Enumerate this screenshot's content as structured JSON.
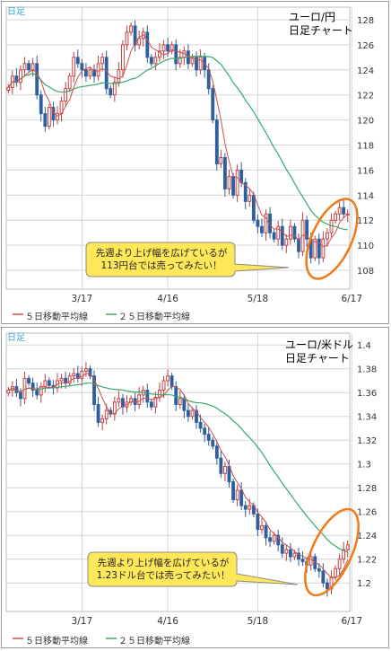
{
  "charts": [
    {
      "daily_label": "日足",
      "title_line1": "ユーロ/円",
      "title_line2": "日足チャート",
      "callout_line1": "先週より上げ幅を広げているが",
      "callout_line2": "113円台では売ってみたい！",
      "legend": {
        "ma5": "５日移動平均線",
        "ma25": "２５日移動平均線"
      }
    },
    {
      "daily_label": "日足",
      "title_line1": "ユーロ/米ドル",
      "title_line2": "日足チャート",
      "callout_line1": "先週より上げ幅を広げているが",
      "callout_line2": "1.23ドル台では売ってみたい！",
      "legend": {
        "ma5": "５日移動平均線",
        "ma25": "２５日移動平均線"
      }
    }
  ],
  "colors": {
    "up": "#c44040",
    "down": "#2f5f9e",
    "ma5": "#c85050",
    "ma25": "#3aa86a",
    "callout_fill": "#ffe75a",
    "ellipse": "#f07a1a",
    "grid": "#d6d6d6"
  },
  "chart_data": [
    {
      "type": "candlestick",
      "series_name": "EUR/JPY",
      "ylim": [
        106.5,
        129
      ],
      "yticks": [
        108,
        110,
        112,
        114,
        116,
        118,
        120,
        122,
        124,
        126,
        128
      ],
      "xticks": [
        "3/17",
        "4/16",
        "5/18",
        "6/17"
      ],
      "xtick_index": [
        18,
        39,
        61,
        84
      ],
      "closes": [
        122.6,
        123.5,
        123.0,
        124.0,
        124.5,
        124.0,
        124.5,
        122.0,
        120.5,
        119.5,
        121.0,
        120.0,
        120.5,
        121.5,
        122.5,
        123.5,
        125.0,
        124.5,
        124.0,
        123.5,
        124.0,
        123.5,
        124.5,
        125.0,
        122.5,
        122.0,
        123.0,
        124.0,
        126.0,
        127.0,
        127.5,
        126.0,
        126.5,
        127.0,
        125.0,
        124.5,
        125.0,
        125.5,
        126.0,
        125.5,
        126.0,
        124.5,
        125.0,
        125.5,
        124.5,
        125.0,
        124.0,
        125.0,
        124.0,
        122.5,
        120.0,
        116.5,
        117.0,
        114.5,
        115.5,
        114.0,
        116.0,
        115.0,
        113.5,
        114.0,
        112.0,
        111.5,
        111.0,
        112.5,
        111.0,
        110.5,
        111.5,
        110.0,
        110.5,
        111.5,
        110.5,
        109.5,
        112.0,
        110.5,
        109.0,
        110.5,
        109.0,
        110.5,
        111.0,
        112.0,
        112.5,
        113.0,
        112.5,
        112.5
      ]
    },
    {
      "type": "candlestick",
      "series_name": "EUR/USD",
      "ylim": [
        1.176,
        1.41
      ],
      "yticks": [
        1.2,
        1.22,
        1.24,
        1.26,
        1.28,
        1.3,
        1.32,
        1.34,
        1.36,
        1.38,
        1.4
      ],
      "xticks": [
        "3/17",
        "4/16",
        "5/18",
        "6/17"
      ],
      "xtick_index": [
        18,
        39,
        61,
        84
      ],
      "closes": [
        1.362,
        1.365,
        1.36,
        1.355,
        1.372,
        1.368,
        1.362,
        1.358,
        1.365,
        1.37,
        1.366,
        1.364,
        1.37,
        1.372,
        1.368,
        1.374,
        1.376,
        1.372,
        1.378,
        1.38,
        1.374,
        1.35,
        1.335,
        1.338,
        1.345,
        1.342,
        1.352,
        1.355,
        1.348,
        1.352,
        1.355,
        1.35,
        1.358,
        1.362,
        1.352,
        1.348,
        1.356,
        1.362,
        1.37,
        1.374,
        1.365,
        1.35,
        1.355,
        1.345,
        1.34,
        1.345,
        1.335,
        1.33,
        1.325,
        1.32,
        1.315,
        1.305,
        1.292,
        1.298,
        1.285,
        1.27,
        1.278,
        1.265,
        1.262,
        1.265,
        1.258,
        1.245,
        1.248,
        1.238,
        1.235,
        1.24,
        1.232,
        1.225,
        1.228,
        1.222,
        1.225,
        1.22,
        1.218,
        1.215,
        1.222,
        1.212,
        1.21,
        1.2,
        1.195,
        1.205,
        1.212,
        1.22,
        1.228,
        1.232
      ]
    }
  ]
}
